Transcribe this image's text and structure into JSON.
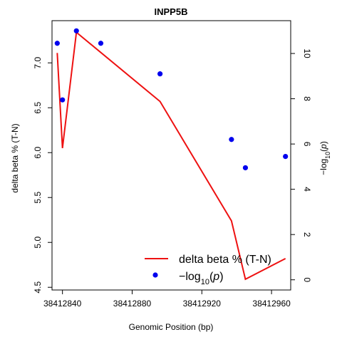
{
  "chart_data": {
    "type": "line",
    "title": "INPP5B",
    "xlabel": "Genomic Position (bp)",
    "ylabel_left": "delta beta % (T-N)",
    "ylabel_right": "-log10(p)",
    "xlim": [
      38412834,
      38412971
    ],
    "ylim_left": [
      4.47,
      7.47
    ],
    "ylim_right": [
      -0.45,
      11.45
    ],
    "x_ticks": [
      38412840,
      38412880,
      38412920,
      38412960
    ],
    "y_left_ticks": [
      4.5,
      5.0,
      5.5,
      6.0,
      6.5,
      7.0
    ],
    "y_right_ticks": [
      0,
      2,
      4,
      6,
      8,
      10
    ],
    "grid": false,
    "legend_position": "bottom-right",
    "series": [
      {
        "name": "delta beta % (T-N)",
        "kind": "line",
        "axis": "left",
        "color": "#ee1111",
        "x": [
          38412837,
          38412840,
          38412848,
          38412896,
          38412937,
          38412945,
          38412968
        ],
        "y": [
          7.11,
          6.05,
          7.34,
          6.57,
          5.24,
          4.59,
          4.82
        ]
      },
      {
        "name": "-log10(p)",
        "kind": "points",
        "axis": "right",
        "color": "#0000ee",
        "x": [
          38412837,
          38412840,
          38412848,
          38412862,
          38412896,
          38412937,
          38412945,
          38412968
        ],
        "y": [
          10.45,
          7.95,
          11.0,
          10.45,
          9.1,
          6.2,
          4.95,
          5.45
        ]
      }
    ]
  }
}
